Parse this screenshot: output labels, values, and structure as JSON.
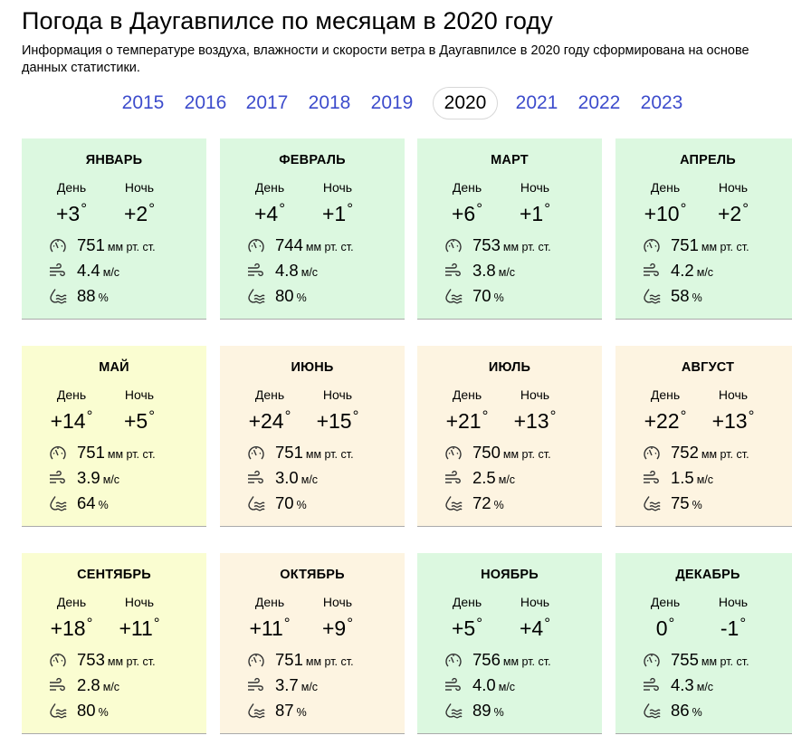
{
  "page": {
    "title": "Погода в Даугавпилсе по месяцам в 2020 году",
    "description": "Информация о температуре воздуха, влажности и скорости ветра в Даугавпилсе в 2020 году сформирована на основе данных статистики."
  },
  "years": [
    "2015",
    "2016",
    "2017",
    "2018",
    "2019",
    "2020",
    "2021",
    "2022",
    "2023"
  ],
  "selected_year": "2020",
  "labels": {
    "day": "День",
    "night": "Ночь",
    "pressure_unit": "мм рт. ст.",
    "wind_unit": "м/с",
    "humidity_unit": "%",
    "degree": "°"
  },
  "icons": {
    "pressure": "gauge-icon",
    "wind": "wind-icon",
    "humidity": "humidity-icon"
  },
  "colors": {
    "link": "#3d4ccc",
    "cold": "#dcf8e0",
    "mild": "#fafdd1",
    "warm": "#fdf4e1"
  },
  "months": [
    {
      "name": "ЯНВАРЬ",
      "day": "+3",
      "night": "+2",
      "pressure": "751",
      "wind": "4.4",
      "humidity": "88",
      "color": "green"
    },
    {
      "name": "ФЕВРАЛЬ",
      "day": "+4",
      "night": "+1",
      "pressure": "744",
      "wind": "4.8",
      "humidity": "80",
      "color": "green"
    },
    {
      "name": "МАРТ",
      "day": "+6",
      "night": "+1",
      "pressure": "753",
      "wind": "3.8",
      "humidity": "70",
      "color": "green"
    },
    {
      "name": "АПРЕЛЬ",
      "day": "+10",
      "night": "+2",
      "pressure": "751",
      "wind": "4.2",
      "humidity": "58",
      "color": "green"
    },
    {
      "name": "МАЙ",
      "day": "+14",
      "night": "+5",
      "pressure": "751",
      "wind": "3.9",
      "humidity": "64",
      "color": "yellow"
    },
    {
      "name": "ИЮНЬ",
      "day": "+24",
      "night": "+15",
      "pressure": "751",
      "wind": "3.0",
      "humidity": "70",
      "color": "orange"
    },
    {
      "name": "ИЮЛЬ",
      "day": "+21",
      "night": "+13",
      "pressure": "750",
      "wind": "2.5",
      "humidity": "72",
      "color": "orange"
    },
    {
      "name": "АВГУСТ",
      "day": "+22",
      "night": "+13",
      "pressure": "752",
      "wind": "1.5",
      "humidity": "75",
      "color": "orange"
    },
    {
      "name": "СЕНТЯБРЬ",
      "day": "+18",
      "night": "+11",
      "pressure": "753",
      "wind": "2.8",
      "humidity": "80",
      "color": "yellow"
    },
    {
      "name": "ОКТЯБРЬ",
      "day": "+11",
      "night": "+9",
      "pressure": "751",
      "wind": "3.7",
      "humidity": "87",
      "color": "orange"
    },
    {
      "name": "НОЯБРЬ",
      "day": "+5",
      "night": "+4",
      "pressure": "756",
      "wind": "4.0",
      "humidity": "89",
      "color": "green"
    },
    {
      "name": "ДЕКАБРЬ",
      "day": "0",
      "night": "-1",
      "pressure": "755",
      "wind": "4.3",
      "humidity": "86",
      "color": "green"
    }
  ]
}
